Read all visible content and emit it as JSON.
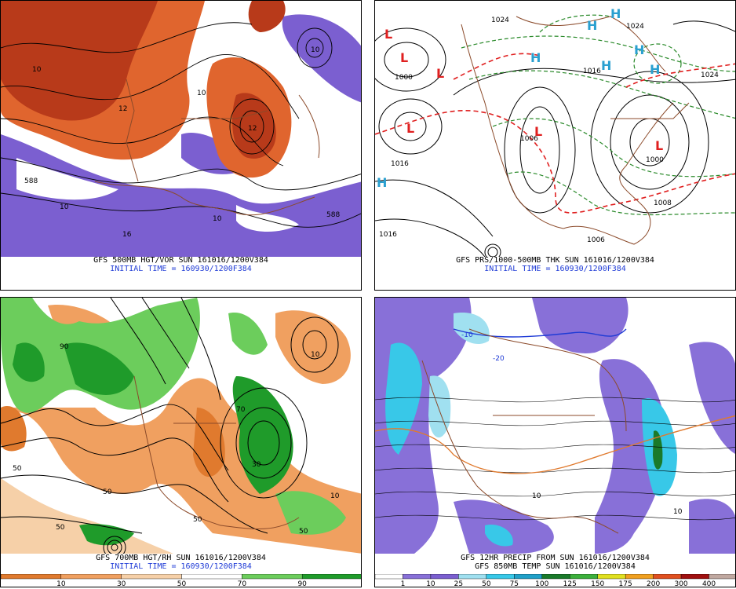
{
  "panels": [
    {
      "id": "p1",
      "product": "GFS 500MB HGT/VOR SUN 161016/1200V384",
      "initial": "INITIAL TIME = 160930/1200F384",
      "labels": [
        "588",
        "10",
        "10",
        "12",
        "10",
        "12",
        "10",
        "16",
        "10",
        "588"
      ]
    },
    {
      "id": "p2",
      "product": "GFS PRS/1000-500MB THK SUN 161016/1200V384",
      "initial": "INITIAL TIME = 160930/1200F384",
      "labels": [
        "1024",
        "1000",
        "1006",
        "1016",
        "1000",
        "1008",
        "1024",
        "1016",
        "1006",
        "1016",
        "1024"
      ],
      "highs": [
        "H",
        "H",
        "H",
        "H",
        "H",
        "H",
        "H"
      ],
      "lows": [
        "L",
        "L",
        "L",
        "L",
        "L",
        "L"
      ]
    },
    {
      "id": "p3",
      "product": "GFS 700MB HGT/RH SUN 161016/1200V384",
      "initial": "INITIAL TIME = 160930/1200F384",
      "labels": [
        "50",
        "50",
        "90",
        "50",
        "70",
        "10",
        "30",
        "50",
        "10",
        "50"
      ],
      "legend": [
        "10",
        "30",
        "50",
        "70",
        "90"
      ],
      "legend_colors": [
        "#e07a2e",
        "#f0a060",
        "#f6d0a8",
        "#ffffff",
        "#6ccd5c",
        "#1f9b2a"
      ]
    },
    {
      "id": "p4",
      "product": "GFS 12HR PRECIP FROM SUN 161016/1200V384",
      "product2": "GFS 850MB TEMP SUN 161016/1200V384",
      "labels": [
        "-10",
        "-20",
        "10",
        "10"
      ],
      "legend": [
        "1",
        "10",
        "25",
        "50",
        "75",
        "100",
        "125",
        "150",
        "175",
        "200",
        "300",
        "400"
      ],
      "legend_colors": [
        "#ffffff",
        "#8870d8",
        "#7b5fd0",
        "#a0e0f0",
        "#38c8e8",
        "#20a0c8",
        "#1a7a2a",
        "#3cb03c",
        "#e0e020",
        "#f0a020",
        "#e05020",
        "#a01010",
        "#c0a8a0"
      ]
    }
  ],
  "colors": {
    "vorticity_high": "#b83a1a",
    "vorticity_mid": "#e0652e",
    "vorticity_neg": "#7b5fd0",
    "thickness_warm": "#e02020",
    "thickness_cold": "#2a8a2a",
    "pressure_low": "#e02020",
    "pressure_high": "#2aa0d0",
    "caption_blue": "#1f3bd6"
  }
}
